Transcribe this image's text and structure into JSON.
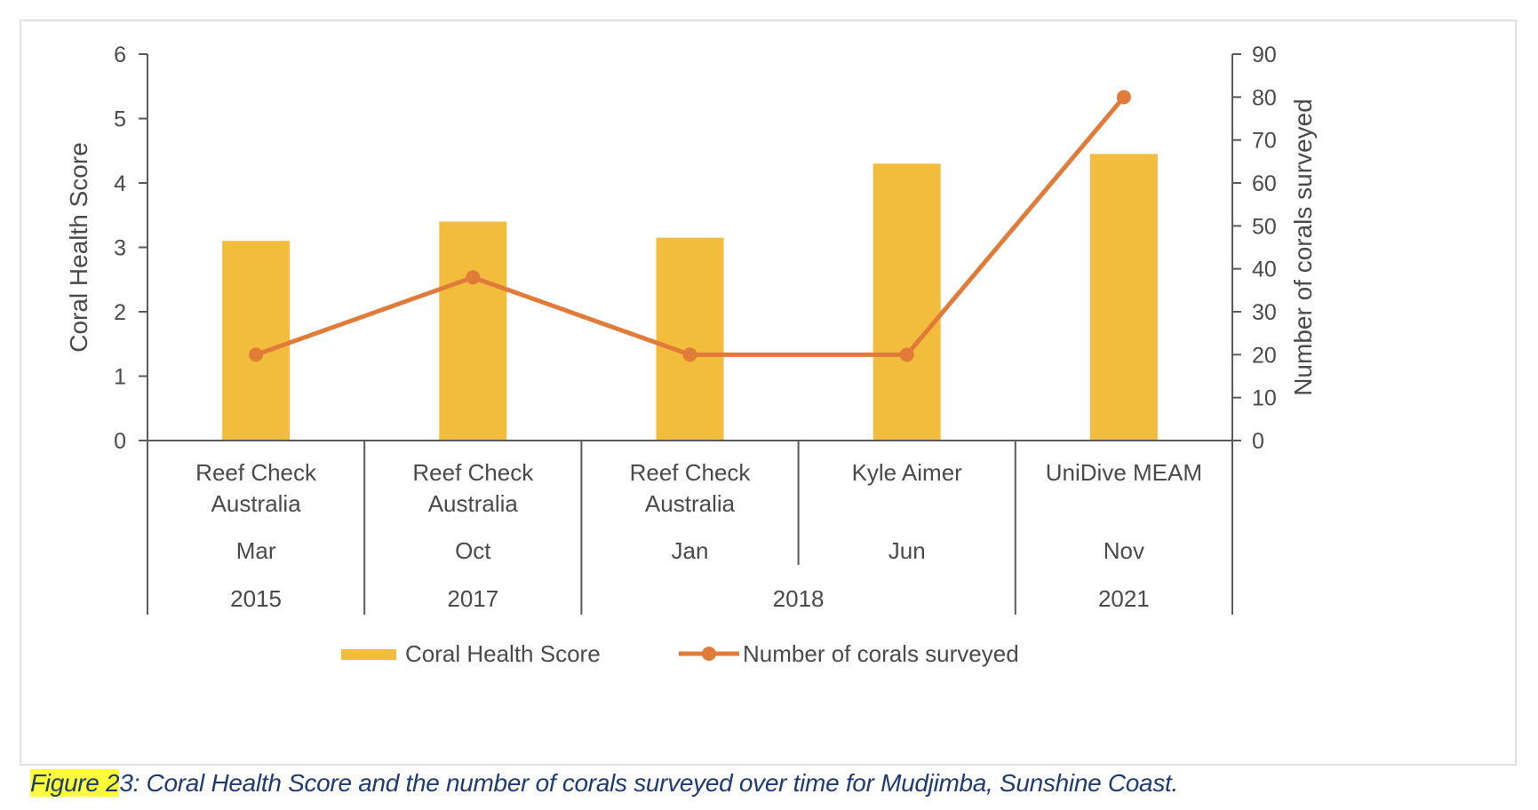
{
  "chart_data": {
    "type": "bar+line",
    "groups": [
      {
        "source": "Reef Check Australia",
        "source_lines": [
          "Reef Check",
          "Australia"
        ],
        "month": "Mar",
        "year": "2015"
      },
      {
        "source": "Reef Check Australia",
        "source_lines": [
          "Reef Check",
          "Australia"
        ],
        "month": "Oct",
        "year": "2017"
      },
      {
        "source": "Reef Check Australia",
        "source_lines": [
          "Reef Check",
          "Australia"
        ],
        "month": "Jan",
        "year": "2018"
      },
      {
        "source": "Kyle Aimer",
        "source_lines": [
          "Kyle Aimer"
        ],
        "month": "Jun",
        "year": "2018"
      },
      {
        "source": "UniDive MEAM",
        "source_lines": [
          "UniDive MEAM"
        ],
        "month": "Nov",
        "year": "2021"
      }
    ],
    "year_groups": [
      {
        "label": "2015",
        "span": 1
      },
      {
        "label": "2017",
        "span": 1
      },
      {
        "label": "2018",
        "span": 2
      },
      {
        "label": "2021",
        "span": 1
      }
    ],
    "series": [
      {
        "name": "Coral Health Score",
        "type": "bar",
        "axis": "left",
        "color": "#f2bd3c",
        "values": [
          3.1,
          3.4,
          3.15,
          4.3,
          4.45
        ]
      },
      {
        "name": "Number of corals surveyed",
        "type": "line",
        "axis": "right",
        "color": "#e07b39",
        "values": [
          20,
          38,
          20,
          20,
          80
        ]
      }
    ],
    "y_left": {
      "label": "Coral Health Score",
      "min": 0,
      "max": 6,
      "ticks": [
        0,
        1,
        2,
        3,
        4,
        5,
        6
      ]
    },
    "y_right": {
      "label": "Number of corals surveyed",
      "min": 0,
      "max": 90,
      "ticks": [
        0,
        10,
        20,
        30,
        40,
        50,
        60,
        70,
        80,
        90
      ]
    },
    "legend_position": "bottom",
    "grid": false
  },
  "caption": {
    "highlight": "Figure 2",
    "text": "3: Coral Health Score and the number of corals surveyed over time for Mudjimba, Sunshine Coast."
  }
}
